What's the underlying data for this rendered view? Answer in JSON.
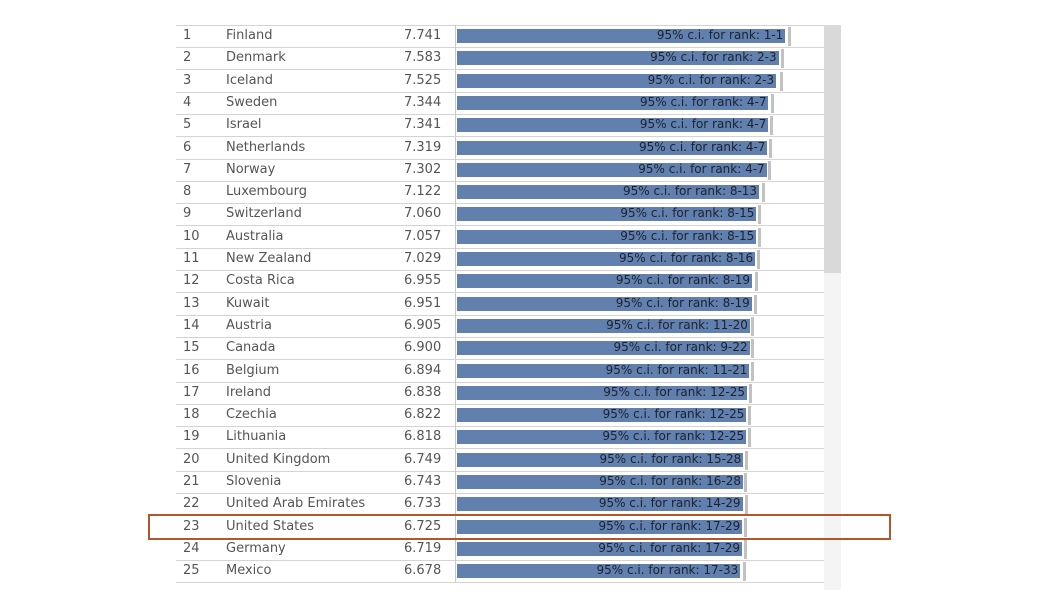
{
  "chart_data": {
    "type": "bar",
    "xlim": [
      0,
      8.7
    ],
    "ci_label_prefix": "95% c.i. for rank: ",
    "highlight_rank": 23,
    "bar_color": "#6180ad",
    "highlight_color": "#b5562a",
    "rows": [
      {
        "rank": 1,
        "country": "Finland",
        "score": "7.741",
        "value": 7.741,
        "ci_upper": 7.86,
        "ci_rank": "1-1"
      },
      {
        "rank": 2,
        "country": "Denmark",
        "score": "7.583",
        "value": 7.583,
        "ci_upper": 7.68,
        "ci_rank": "2-3"
      },
      {
        "rank": 3,
        "country": "Iceland",
        "score": "7.525",
        "value": 7.525,
        "ci_upper": 7.66,
        "ci_rank": "2-3"
      },
      {
        "rank": 4,
        "country": "Sweden",
        "score": "7.344",
        "value": 7.344,
        "ci_upper": 7.44,
        "ci_rank": "4-7"
      },
      {
        "rank": 5,
        "country": "Israel",
        "score": "7.341",
        "value": 7.341,
        "ci_upper": 7.43,
        "ci_rank": "4-7"
      },
      {
        "rank": 6,
        "country": "Netherlands",
        "score": "7.319",
        "value": 7.319,
        "ci_upper": 7.4,
        "ci_rank": "4-7"
      },
      {
        "rank": 7,
        "country": "Norway",
        "score": "7.302",
        "value": 7.302,
        "ci_upper": 7.39,
        "ci_rank": "4-7"
      },
      {
        "rank": 8,
        "country": "Luxembourg",
        "score": "7.122",
        "value": 7.122,
        "ci_upper": 7.23,
        "ci_rank": "8-13"
      },
      {
        "rank": 9,
        "country": "Switzerland",
        "score": "7.060",
        "value": 7.06,
        "ci_upper": 7.14,
        "ci_rank": "8-15"
      },
      {
        "rank": 10,
        "country": "Australia",
        "score": "7.057",
        "value": 7.057,
        "ci_upper": 7.14,
        "ci_rank": "8-15"
      },
      {
        "rank": 11,
        "country": "New Zealand",
        "score": "7.029",
        "value": 7.029,
        "ci_upper": 7.12,
        "ci_rank": "8-16"
      },
      {
        "rank": 12,
        "country": "Costa Rica",
        "score": "6.955",
        "value": 6.955,
        "ci_upper": 7.07,
        "ci_rank": "8-19"
      },
      {
        "rank": 13,
        "country": "Kuwait",
        "score": "6.951",
        "value": 6.951,
        "ci_upper": 7.06,
        "ci_rank": "8-19"
      },
      {
        "rank": 14,
        "country": "Austria",
        "score": "6.905",
        "value": 6.905,
        "ci_upper": 6.99,
        "ci_rank": "11-20"
      },
      {
        "rank": 15,
        "country": "Canada",
        "score": "6.900",
        "value": 6.9,
        "ci_upper": 6.98,
        "ci_rank": "9-22"
      },
      {
        "rank": 16,
        "country": "Belgium",
        "score": "6.894",
        "value": 6.894,
        "ci_upper": 6.97,
        "ci_rank": "11-21"
      },
      {
        "rank": 17,
        "country": "Ireland",
        "score": "6.838",
        "value": 6.838,
        "ci_upper": 6.94,
        "ci_rank": "12-25"
      },
      {
        "rank": 18,
        "country": "Czechia",
        "score": "6.822",
        "value": 6.822,
        "ci_upper": 6.91,
        "ci_rank": "12-25"
      },
      {
        "rank": 19,
        "country": "Lithuania",
        "score": "6.818",
        "value": 6.818,
        "ci_upper": 6.9,
        "ci_rank": "12-25"
      },
      {
        "rank": 20,
        "country": "United Kingdom",
        "score": "6.749",
        "value": 6.749,
        "ci_upper": 6.83,
        "ci_rank": "15-28"
      },
      {
        "rank": 21,
        "country": "Slovenia",
        "score": "6.743",
        "value": 6.743,
        "ci_upper": 6.82,
        "ci_rank": "16-28"
      },
      {
        "rank": 22,
        "country": "United Arab Emirates",
        "score": "6.733",
        "value": 6.733,
        "ci_upper": 6.84,
        "ci_rank": "14-29"
      },
      {
        "rank": 23,
        "country": "United States",
        "score": "6.725",
        "value": 6.725,
        "ci_upper": 6.82,
        "ci_rank": "17-29"
      },
      {
        "rank": 24,
        "country": "Germany",
        "score": "6.719",
        "value": 6.719,
        "ci_upper": 6.82,
        "ci_rank": "17-29"
      },
      {
        "rank": 25,
        "country": "Mexico",
        "score": "6.678",
        "value": 6.678,
        "ci_upper": 6.79,
        "ci_rank": "17-33"
      }
    ]
  }
}
